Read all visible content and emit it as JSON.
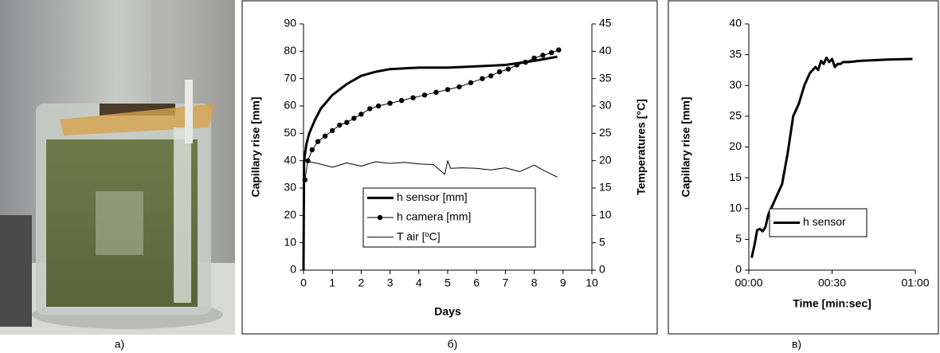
{
  "photo": {
    "label": "a)"
  },
  "chart_data": [
    {
      "type": "line",
      "panel_label": "б)",
      "xlabel": "Days",
      "ylabel": "Capillary rise [mm]",
      "y2label": "Temperatures [°C]",
      "xlim": [
        0,
        10
      ],
      "xticks": [
        0,
        1,
        2,
        3,
        4,
        5,
        6,
        7,
        8,
        9,
        10
      ],
      "ylim": [
        0,
        90
      ],
      "yticks": [
        0,
        10,
        20,
        30,
        40,
        50,
        60,
        70,
        80,
        90
      ],
      "y2lim": [
        0,
        45
      ],
      "y2ticks": [
        0,
        5,
        10,
        15,
        20,
        25,
        30,
        35,
        40,
        45
      ],
      "grid": false,
      "series": [
        {
          "name": "h sensor [mm]",
          "color": "#000000",
          "width": 3,
          "marker": "none",
          "x": [
            0,
            0.02,
            0.1,
            0.2,
            0.4,
            0.6,
            1,
            1.5,
            2,
            2.5,
            3,
            4,
            5,
            6,
            7,
            8,
            8.8
          ],
          "values": [
            0,
            40,
            46,
            50,
            55,
            59,
            64,
            68,
            71,
            72.5,
            73.5,
            74,
            74,
            74.5,
            75,
            76.5,
            78
          ]
        },
        {
          "name": "h camera [mm]",
          "color": "#000000",
          "width": 1,
          "marker": "circle",
          "x": [
            0.05,
            0.15,
            0.3,
            0.5,
            0.75,
            1,
            1.25,
            1.5,
            1.75,
            2,
            2.3,
            2.6,
            3,
            3.4,
            3.8,
            4.2,
            4.6,
            5,
            5.4,
            5.8,
            6.2,
            6.5,
            6.8,
            7.1,
            7.4,
            7.7,
            8,
            8.3,
            8.6,
            8.85
          ],
          "values": [
            33,
            40,
            44,
            47,
            49,
            51,
            53,
            54,
            55.5,
            57,
            59,
            60,
            61,
            62,
            63,
            64,
            65,
            66,
            67,
            68.5,
            70,
            71,
            72.5,
            73.5,
            75,
            76,
            77.5,
            78.5,
            79.5,
            80.5
          ]
        },
        {
          "name": "T air [ºC]",
          "color": "#000000",
          "width": 1,
          "marker": "none",
          "axis": "y2",
          "x": [
            0,
            0.5,
            1,
            1.5,
            2,
            2.5,
            3,
            3.5,
            4,
            4.5,
            4.9,
            5,
            5.1,
            5.5,
            6,
            6.5,
            7,
            7.5,
            8,
            8.3,
            8.8
          ],
          "values": [
            20,
            19.5,
            18.8,
            19.6,
            19,
            19.8,
            19.5,
            19.7,
            19.4,
            19.3,
            17.5,
            20,
            18.6,
            18.7,
            18.6,
            18.3,
            18.7,
            18,
            19.2,
            18.3,
            17
          ]
        }
      ]
    },
    {
      "type": "line",
      "panel_label": "в)",
      "xlabel": "Time [min:sec]",
      "ylabel": "Capillary rise [mm]",
      "xlim": [
        0,
        60
      ],
      "xticks": [
        {
          "value": 0,
          "label": "00:00"
        },
        {
          "value": 30,
          "label": "00:30"
        },
        {
          "value": 60,
          "label": "01:00"
        }
      ],
      "ylim": [
        0,
        40
      ],
      "yticks": [
        0,
        5,
        10,
        15,
        20,
        25,
        30,
        35,
        40
      ],
      "grid": false,
      "series": [
        {
          "name": "h sensor",
          "color": "#000000",
          "width": 3,
          "marker": "none",
          "x": [
            1,
            2,
            3,
            4,
            5,
            6,
            7,
            8,
            9,
            10,
            12,
            14,
            16,
            18,
            20,
            22,
            24,
            25,
            26,
            27,
            28,
            29,
            30,
            31,
            32,
            33,
            34,
            36,
            40,
            50,
            59
          ],
          "values": [
            2,
            4,
            6.5,
            6.7,
            6.3,
            7,
            9,
            10,
            11,
            12,
            14,
            19,
            25,
            27,
            30,
            32,
            33,
            32.5,
            34,
            33.5,
            34.5,
            33.8,
            34.3,
            33,
            33.5,
            33.5,
            33.8,
            33.8,
            34,
            34.2,
            34.3
          ]
        }
      ]
    }
  ]
}
